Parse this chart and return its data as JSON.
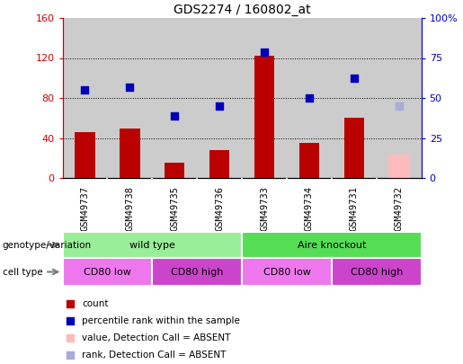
{
  "title": "GDS2274 / 160802_at",
  "samples": [
    "GSM49737",
    "GSM49738",
    "GSM49735",
    "GSM49736",
    "GSM49733",
    "GSM49734",
    "GSM49731",
    "GSM49732"
  ],
  "bar_values": [
    46,
    49,
    15,
    28,
    122,
    35,
    60,
    23
  ],
  "bar_colors": [
    "#bb0000",
    "#bb0000",
    "#bb0000",
    "#bb0000",
    "#bb0000",
    "#bb0000",
    "#bb0000",
    "#ffbbbb"
  ],
  "dot_values_left": [
    88,
    91,
    62,
    72,
    126,
    80,
    100,
    72
  ],
  "dot_colors": [
    "#0000bb",
    "#0000bb",
    "#0000bb",
    "#0000bb",
    "#0000bb",
    "#0000bb",
    "#0000bb",
    "#aaaadd"
  ],
  "ylim_left": [
    0,
    160
  ],
  "ylim_right": [
    0,
    100
  ],
  "yticks_left": [
    0,
    40,
    80,
    120,
    160
  ],
  "ytick_labels_left": [
    "0",
    "40",
    "80",
    "120",
    "160"
  ],
  "yticks_right": [
    0,
    25,
    50,
    75,
    100
  ],
  "ytick_labels_right": [
    "0",
    "25",
    "50",
    "75",
    "100%"
  ],
  "grid_values": [
    40,
    80,
    120
  ],
  "genotype_groups": [
    {
      "label": "wild type",
      "start": 0,
      "end": 4,
      "color": "#99ee99"
    },
    {
      "label": "Aire knockout",
      "start": 4,
      "end": 8,
      "color": "#55dd55"
    }
  ],
  "celltype_groups": [
    {
      "label": "CD80 low",
      "start": 0,
      "end": 2,
      "color": "#ee77ee"
    },
    {
      "label": "CD80 high",
      "start": 2,
      "end": 4,
      "color": "#cc44cc"
    },
    {
      "label": "CD80 low",
      "start": 4,
      "end": 6,
      "color": "#ee77ee"
    },
    {
      "label": "CD80 high",
      "start": 6,
      "end": 8,
      "color": "#cc44cc"
    }
  ],
  "legend_items": [
    {
      "label": "count",
      "color": "#bb0000"
    },
    {
      "label": "percentile rank within the sample",
      "color": "#0000bb"
    },
    {
      "label": "value, Detection Call = ABSENT",
      "color": "#ffbbbb"
    },
    {
      "label": "rank, Detection Call = ABSENT",
      "color": "#aaaadd"
    }
  ],
  "left_axis_color": "#cc0000",
  "right_axis_color": "#0000cc",
  "col_bg_color": "#cccccc",
  "xtick_area_color": "#cccccc"
}
